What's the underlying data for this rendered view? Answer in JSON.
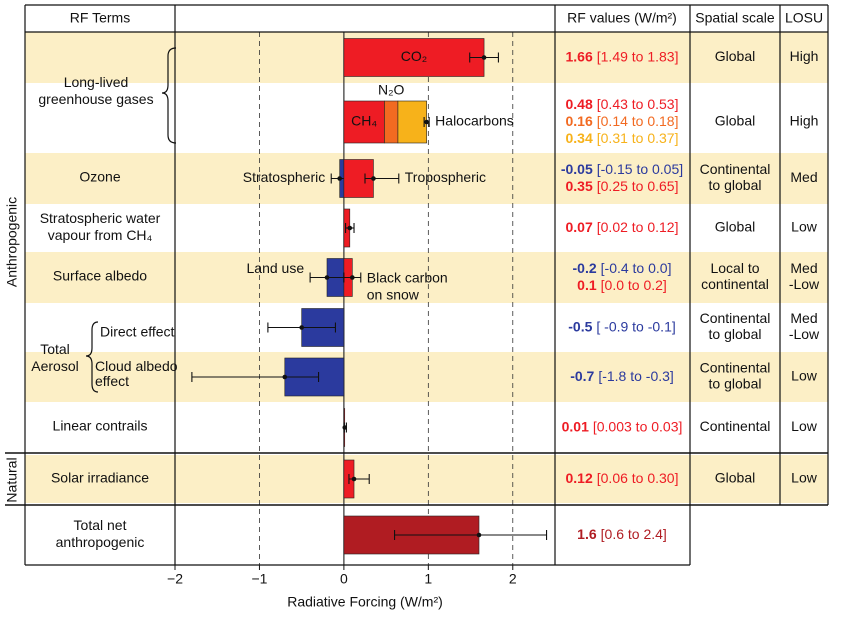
{
  "chart_data": {
    "type": "bar",
    "headers": [
      "RF Terms",
      "RF values (W/m²)",
      "Spatial scale",
      "LOSU"
    ],
    "groups": [
      "Anthropogenic",
      "Natural"
    ],
    "terms": [
      [
        "Long-lived",
        "greenhouse gases"
      ],
      "Ozone",
      [
        "Stratospheric water",
        "vapour from CH₄"
      ],
      "Surface albedo",
      [
        "Total",
        "Aerosol"
      ],
      "Direct effect",
      [
        "Cloud albedo",
        "effect"
      ],
      "Linear contrails",
      "Solar irradiance",
      [
        "Total net",
        "anthropogenic"
      ]
    ],
    "xlabel": "Radiative Forcing (W/m²)",
    "xlim": [
      -2,
      2.5
    ],
    "xticks": [
      {
        "value": -2,
        "label": "−2"
      },
      {
        "value": -1,
        "label": "−1"
      },
      0,
      1,
      2
    ],
    "grid": true,
    "rows": [
      {
        "components": [
          {
            "name": "CO₂",
            "value": 1.66,
            "low": 1.49,
            "high": 1.83,
            "range_label": "[1.49 to 1.83]",
            "color": "#ee1c24"
          }
        ],
        "spatial": "Global",
        "losu": "High"
      },
      {
        "stacked": true,
        "components": [
          {
            "name": "CH₄",
            "value": 0.48,
            "range_label": "[0.43 to 0.53]",
            "color": "#ee1c24"
          },
          {
            "name": "N₂O",
            "value": 0.16,
            "range_label": "[0.14 to 0.18]",
            "color": "#f26a21"
          },
          {
            "name": "Halocarbons",
            "value": 0.34,
            "low": 0.31,
            "high": 0.37,
            "range_label": "[0.31 to 0.37]",
            "color": "#f7b21a"
          }
        ],
        "spatial": "Global",
        "losu": "High"
      },
      {
        "components": [
          {
            "name": "Stratospheric",
            "value": -0.05,
            "low": -0.15,
            "high": 0.05,
            "range_label": "[-0.15 to 0.05]",
            "color": "#2b3a9e"
          },
          {
            "name": "Tropospheric",
            "value": 0.35,
            "low": 0.25,
            "high": 0.65,
            "range_label": "[0.25 to 0.65]",
            "color": "#ee1c24"
          }
        ],
        "spatial": [
          "Continental",
          "to global"
        ],
        "losu": "Med"
      },
      {
        "components": [
          {
            "value": 0.07,
            "low": 0.02,
            "high": 0.12,
            "range_label": "[0.02 to 0.12]",
            "color": "#ee1c24"
          }
        ],
        "spatial": "Global",
        "losu": "Low"
      },
      {
        "components": [
          {
            "name": "Land use",
            "value": -0.2,
            "low": -0.4,
            "high": 0,
            "range_label": "[-0.4 to 0.0]",
            "color": "#2b3a9e"
          },
          {
            "name": [
              "Black carbon",
              "on snow"
            ],
            "value": 0.1,
            "low": 0,
            "high": 0.2,
            "range_label": "[0.0 to 0.2]",
            "color": "#ee1c24"
          }
        ],
        "spatial": [
          "Local to",
          "continental"
        ],
        "losu": [
          "Med",
          "-Low"
        ]
      },
      {
        "components": [
          {
            "value": -0.5,
            "low": -0.9,
            "high": -0.1,
            "range_label": "[ -0.9 to -0.1]",
            "color": "#2b3a9e"
          }
        ],
        "spatial": [
          "Continental",
          "to global"
        ],
        "losu": [
          "Med",
          "-Low"
        ]
      },
      {
        "components": [
          {
            "value": -0.7,
            "low": -1.8,
            "high": -0.3,
            "range_label": "[-1.8 to -0.3]",
            "color": "#2b3a9e"
          }
        ],
        "spatial": [
          "Continental",
          "to global"
        ],
        "losu": "Low"
      },
      {
        "components": [
          {
            "value": 0.01,
            "low": 0.003,
            "high": 0.03,
            "range_label": "[0.003 to 0.03]",
            "color": "#ee1c24"
          }
        ],
        "spatial": "Continental",
        "losu": "Low"
      },
      {
        "components": [
          {
            "value": 0.12,
            "low": 0.06,
            "high": 0.3,
            "range_label": "[0.06 to 0.30]",
            "color": "#ee1c24"
          }
        ],
        "spatial": "Global",
        "losu": "Low"
      },
      {
        "components": [
          {
            "value": 1.6,
            "low": 0.6,
            "high": 2.4,
            "range_label": "[0.6 to 2.4]",
            "color": "#b01c22"
          }
        ]
      }
    ]
  }
}
